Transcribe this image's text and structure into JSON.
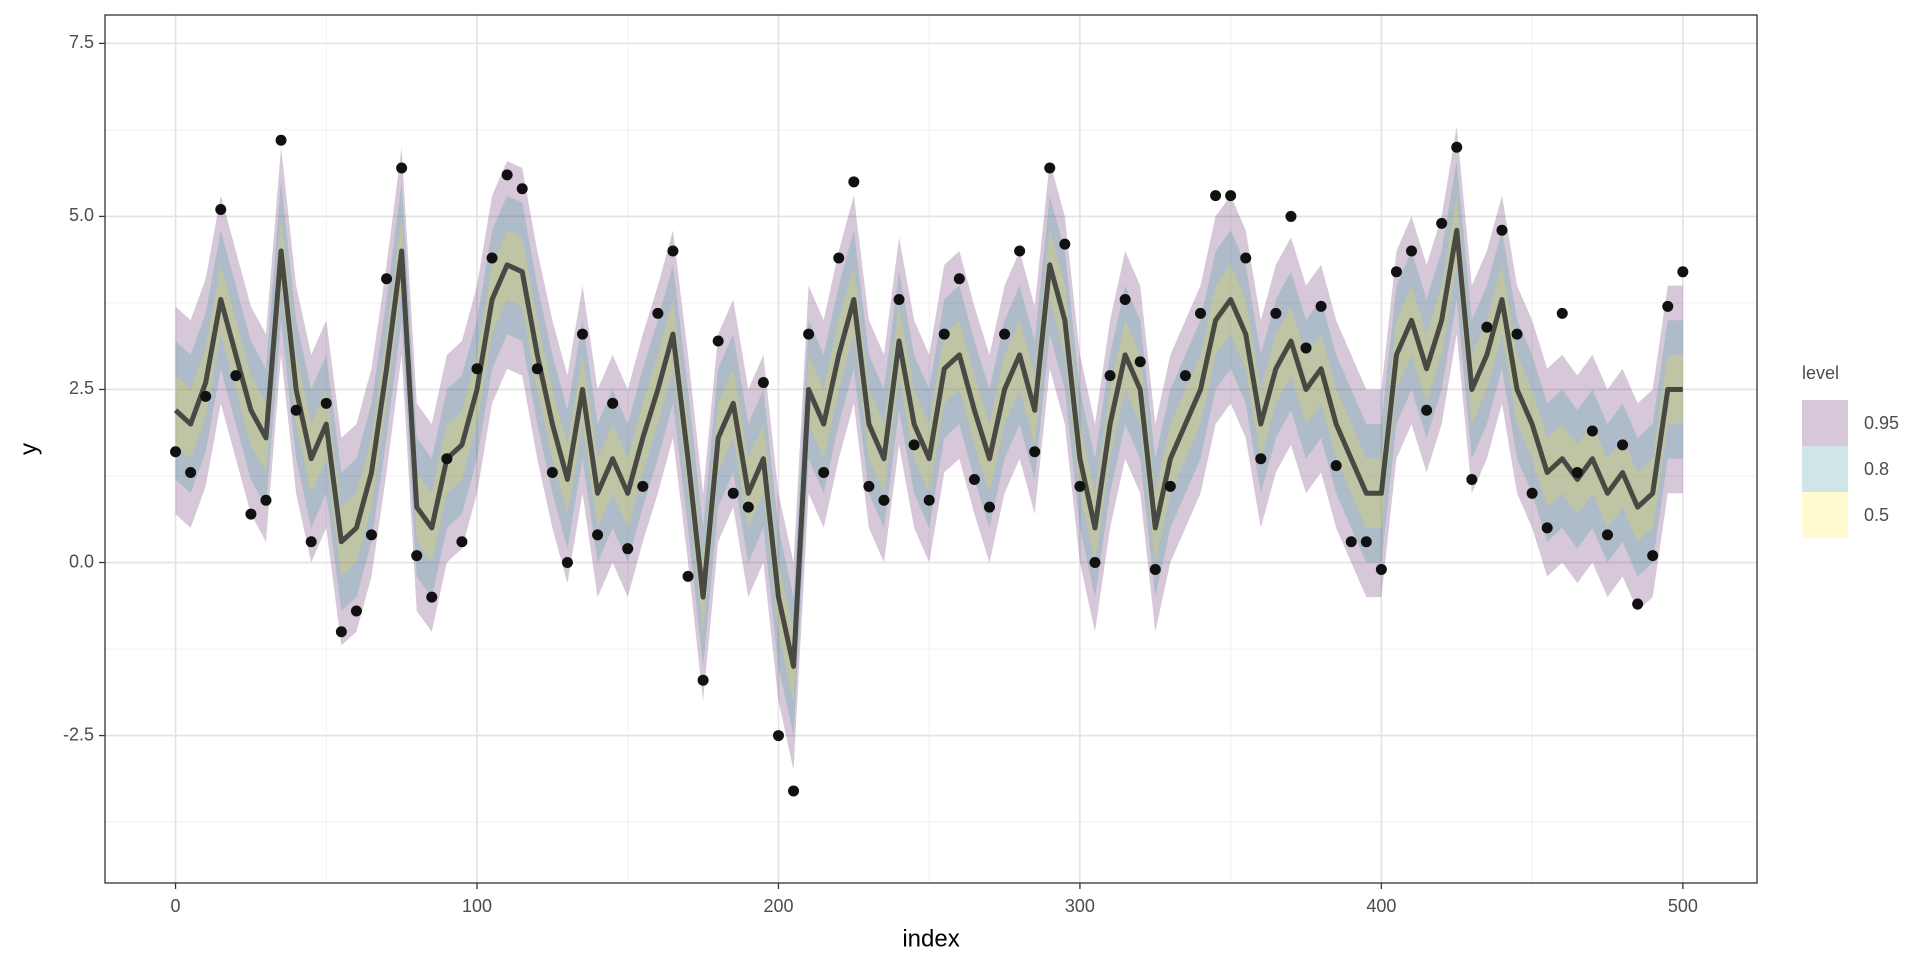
{
  "chart_data": {
    "type": "ribbon",
    "x_label": "index",
    "y_label": "y",
    "legend_title": "level",
    "legend_position": "right",
    "grid": true,
    "xlim": [
      -23.4,
      524.6
    ],
    "ylim": [
      -4.63,
      7.91
    ],
    "xticks": [
      0,
      100,
      200,
      300,
      400,
      500
    ],
    "yticks": [
      -2.5,
      {
        "value": 0,
        "label": "0.0"
      },
      2.5,
      {
        "value": 5,
        "label": "5.0"
      },
      7.5
    ],
    "x_minor_ticks": [
      50,
      150,
      250,
      350,
      450
    ],
    "y_minor_ticks": [
      -3.75,
      -1.25,
      1.25,
      3.75,
      6.25
    ],
    "x": [
      0,
      5,
      10,
      15,
      20,
      25,
      30,
      35,
      40,
      45,
      50,
      55,
      60,
      65,
      70,
      75,
      80,
      85,
      90,
      95,
      100,
      105,
      110,
      115,
      120,
      125,
      130,
      135,
      140,
      145,
      150,
      155,
      160,
      165,
      170,
      175,
      180,
      185,
      190,
      195,
      200,
      205,
      210,
      215,
      220,
      225,
      230,
      235,
      240,
      245,
      250,
      255,
      260,
      265,
      270,
      275,
      280,
      285,
      290,
      295,
      300,
      305,
      310,
      315,
      320,
      325,
      330,
      335,
      340,
      345,
      350,
      355,
      360,
      365,
      370,
      375,
      380,
      385,
      390,
      395,
      400,
      405,
      410,
      415,
      420,
      425,
      430,
      435,
      440,
      445,
      450,
      455,
      460,
      465,
      470,
      475,
      480,
      485,
      490,
      495,
      500
    ],
    "bands": [
      {
        "name": "0.95",
        "color": "#440154",
        "lower": [
          0.7,
          0.5,
          1.1,
          2.3,
          1.5,
          0.7,
          0.3,
          3.0,
          1.0,
          0.0,
          0.5,
          -1.2,
          -1.0,
          -0.2,
          1.3,
          3.0,
          -0.7,
          -1.0,
          0.0,
          0.2,
          1.0,
          2.3,
          2.8,
          2.7,
          1.5,
          0.5,
          -0.3,
          1.0,
          -0.5,
          0.0,
          -0.5,
          0.3,
          1.0,
          1.8,
          0.0,
          -2.0,
          0.3,
          0.8,
          -0.5,
          0.0,
          -2.0,
          -3.0,
          1.0,
          0.5,
          1.5,
          2.3,
          0.5,
          0.0,
          1.7,
          0.5,
          0.0,
          1.3,
          1.5,
          0.7,
          0.0,
          1.0,
          1.5,
          0.7,
          2.8,
          2.0,
          0.0,
          -1.0,
          0.5,
          1.5,
          1.0,
          -1.0,
          0.0,
          0.5,
          1.0,
          2.0,
          2.3,
          1.8,
          0.5,
          1.3,
          1.7,
          1.0,
          1.3,
          0.5,
          0.0,
          -0.5,
          -0.5,
          1.5,
          2.0,
          1.3,
          2.0,
          3.3,
          1.0,
          1.5,
          2.3,
          1.0,
          0.5,
          -0.2,
          0.0,
          -0.3,
          0.0,
          -0.5,
          -0.2,
          -0.7,
          -0.5,
          1.0,
          1.0
        ],
        "upper": [
          3.7,
          3.5,
          4.1,
          5.3,
          4.5,
          3.7,
          3.3,
          6.0,
          4.0,
          3.0,
          3.5,
          1.8,
          2.0,
          2.8,
          4.3,
          6.0,
          2.3,
          2.0,
          3.0,
          3.2,
          4.0,
          5.3,
          5.8,
          5.7,
          4.5,
          3.5,
          2.7,
          4.0,
          2.5,
          3.0,
          2.5,
          3.3,
          4.0,
          4.8,
          3.0,
          1.0,
          3.3,
          3.8,
          2.5,
          3.0,
          1.0,
          0.0,
          4.0,
          3.5,
          4.5,
          5.3,
          3.5,
          3.0,
          4.7,
          3.5,
          3.0,
          4.3,
          4.5,
          3.7,
          3.0,
          4.0,
          4.5,
          3.7,
          5.8,
          5.0,
          3.0,
          2.0,
          3.5,
          4.5,
          4.0,
          2.0,
          3.0,
          3.5,
          4.0,
          5.0,
          5.3,
          4.8,
          3.5,
          4.3,
          4.7,
          4.0,
          4.3,
          3.5,
          3.0,
          2.5,
          2.5,
          4.5,
          5.0,
          4.3,
          5.0,
          6.3,
          4.0,
          4.5,
          5.3,
          4.0,
          3.5,
          2.8,
          3.0,
          2.7,
          3.0,
          2.5,
          2.8,
          2.3,
          2.5,
          4.0,
          4.0
        ]
      },
      {
        "name": "0.8",
        "color": "#21908c",
        "lower": [
          1.2,
          1.0,
          1.6,
          2.8,
          2.0,
          1.2,
          0.8,
          3.5,
          1.5,
          0.5,
          1.0,
          -0.7,
          -0.5,
          0.3,
          1.8,
          3.5,
          -0.2,
          -0.5,
          0.5,
          0.7,
          1.5,
          2.8,
          3.3,
          3.2,
          2.0,
          1.0,
          0.2,
          1.5,
          0.0,
          0.5,
          0.0,
          0.8,
          1.5,
          2.3,
          0.5,
          -1.5,
          0.8,
          1.3,
          0.0,
          0.5,
          -1.5,
          -2.5,
          1.5,
          1.0,
          2.0,
          2.8,
          1.0,
          0.5,
          2.2,
          1.0,
          0.5,
          1.8,
          2.0,
          1.2,
          0.5,
          1.5,
          2.0,
          1.2,
          3.3,
          2.5,
          0.5,
          -0.5,
          1.0,
          2.0,
          1.5,
          -0.5,
          0.5,
          1.0,
          1.5,
          2.5,
          2.8,
          2.3,
          1.0,
          1.8,
          2.2,
          1.5,
          1.8,
          1.0,
          0.5,
          0.0,
          0.0,
          2.0,
          2.5,
          1.8,
          2.5,
          3.8,
          1.5,
          2.0,
          2.8,
          1.5,
          1.0,
          0.3,
          0.5,
          0.2,
          0.5,
          0.0,
          0.3,
          -0.2,
          0.0,
          1.5,
          1.5
        ],
        "upper": [
          3.2,
          3.0,
          3.6,
          4.8,
          4.0,
          3.2,
          2.8,
          5.5,
          3.5,
          2.5,
          3.0,
          1.3,
          1.5,
          2.3,
          3.8,
          5.5,
          1.8,
          1.5,
          2.5,
          2.7,
          3.5,
          4.8,
          5.3,
          5.2,
          4.0,
          3.0,
          2.2,
          3.5,
          2.0,
          2.5,
          2.0,
          2.8,
          3.5,
          4.3,
          2.5,
          0.5,
          2.8,
          3.3,
          2.0,
          2.5,
          0.5,
          -0.5,
          3.5,
          3.0,
          4.0,
          4.8,
          3.0,
          2.5,
          4.2,
          3.0,
          2.5,
          3.8,
          4.0,
          3.2,
          2.5,
          3.5,
          4.0,
          3.2,
          5.3,
          4.5,
          2.5,
          1.5,
          3.0,
          4.0,
          3.5,
          1.5,
          2.5,
          3.0,
          3.5,
          4.5,
          4.8,
          4.3,
          3.0,
          3.8,
          4.2,
          3.5,
          3.8,
          3.0,
          2.5,
          2.0,
          2.0,
          4.0,
          4.5,
          3.8,
          4.5,
          5.8,
          3.5,
          4.0,
          4.8,
          3.5,
          3.0,
          2.3,
          2.5,
          2.2,
          2.5,
          2.0,
          2.3,
          1.8,
          2.0,
          3.5,
          3.5
        ]
      },
      {
        "name": "0.5",
        "color": "#fde725",
        "lower": [
          1.7,
          1.5,
          2.1,
          3.3,
          2.5,
          1.7,
          1.3,
          4.0,
          2.0,
          1.0,
          1.5,
          -0.2,
          0.0,
          0.8,
          2.3,
          4.0,
          0.3,
          0.0,
          1.0,
          1.2,
          2.0,
          3.3,
          3.8,
          3.7,
          2.5,
          1.5,
          0.7,
          2.0,
          0.5,
          1.0,
          0.5,
          1.3,
          2.0,
          2.8,
          1.0,
          -1.0,
          1.3,
          1.8,
          0.5,
          1.0,
          -1.0,
          -2.0,
          2.0,
          1.5,
          2.5,
          3.3,
          1.5,
          1.0,
          2.7,
          1.5,
          1.0,
          2.3,
          2.5,
          1.7,
          1.0,
          2.0,
          2.5,
          1.7,
          3.8,
          3.0,
          1.0,
          0.0,
          1.5,
          2.5,
          2.0,
          0.0,
          1.0,
          1.5,
          2.0,
          3.0,
          3.3,
          2.8,
          1.5,
          2.3,
          2.7,
          2.0,
          2.3,
          1.5,
          1.0,
          0.5,
          0.5,
          2.5,
          3.0,
          2.3,
          3.0,
          4.3,
          2.0,
          2.5,
          3.3,
          2.0,
          1.5,
          0.8,
          1.0,
          0.7,
          1.0,
          0.5,
          0.8,
          0.3,
          0.5,
          2.0,
          2.0
        ],
        "upper": [
          2.7,
          2.5,
          3.1,
          4.3,
          3.5,
          2.7,
          2.3,
          5.0,
          3.0,
          2.0,
          2.5,
          0.8,
          1.0,
          1.8,
          3.3,
          5.0,
          1.3,
          1.0,
          2.0,
          2.2,
          3.0,
          4.3,
          4.8,
          4.7,
          3.5,
          2.5,
          1.7,
          3.0,
          1.5,
          2.0,
          1.5,
          2.3,
          3.0,
          3.8,
          2.0,
          0.0,
          2.3,
          2.8,
          1.5,
          2.0,
          0.0,
          -1.0,
          3.0,
          2.5,
          3.5,
          4.3,
          2.5,
          2.0,
          3.7,
          2.5,
          2.0,
          3.3,
          3.5,
          2.7,
          2.0,
          3.0,
          3.5,
          2.7,
          4.8,
          4.0,
          2.0,
          1.0,
          2.5,
          3.5,
          3.0,
          1.0,
          2.0,
          2.5,
          3.0,
          4.0,
          4.3,
          3.8,
          2.5,
          3.3,
          3.7,
          3.0,
          3.3,
          2.5,
          2.0,
          1.5,
          1.5,
          3.5,
          4.0,
          3.3,
          4.0,
          5.3,
          3.0,
          3.5,
          4.3,
          3.0,
          2.5,
          1.8,
          2.0,
          1.7,
          2.0,
          1.5,
          1.8,
          1.3,
          1.5,
          3.0,
          3.0
        ]
      }
    ],
    "line": {
      "color": "#333333",
      "values": [
        2.2,
        2.0,
        2.6,
        3.8,
        3.0,
        2.2,
        1.8,
        4.5,
        2.5,
        1.5,
        2.0,
        0.3,
        0.5,
        1.3,
        2.8,
        4.5,
        0.8,
        0.5,
        1.5,
        1.7,
        2.5,
        3.8,
        4.3,
        4.2,
        3.0,
        2.0,
        1.2,
        2.5,
        1.0,
        1.5,
        1.0,
        1.8,
        2.5,
        3.3,
        1.5,
        -0.5,
        1.8,
        2.3,
        1.0,
        1.5,
        -0.5,
        -1.5,
        2.5,
        2.0,
        3.0,
        3.8,
        2.0,
        1.5,
        3.2,
        2.0,
        1.5,
        2.8,
        3.0,
        2.2,
        1.5,
        2.5,
        3.0,
        2.2,
        4.3,
        3.5,
        1.5,
        0.5,
        2.0,
        3.0,
        2.5,
        0.5,
        1.5,
        2.0,
        2.5,
        3.5,
        3.8,
        3.3,
        2.0,
        2.8,
        3.2,
        2.5,
        2.8,
        2.0,
        1.5,
        1.0,
        1.0,
        3.0,
        3.5,
        2.8,
        3.5,
        4.8,
        2.5,
        3.0,
        3.8,
        2.5,
        2.0,
        1.3,
        1.5,
        1.2,
        1.5,
        1.0,
        1.3,
        0.8,
        1.0,
        2.5,
        2.5
      ]
    },
    "points": {
      "color": "#111111",
      "values": [
        1.6,
        1.3,
        2.4,
        5.1,
        2.7,
        0.7,
        0.9,
        6.1,
        2.2,
        0.3,
        2.3,
        -1.0,
        -0.7,
        0.4,
        4.1,
        5.7,
        0.1,
        -0.5,
        1.5,
        0.3,
        2.8,
        4.4,
        5.6,
        5.4,
        2.8,
        1.3,
        0.0,
        3.3,
        0.4,
        2.3,
        0.2,
        1.1,
        3.6,
        4.5,
        -0.2,
        -1.7,
        3.2,
        1.0,
        0.8,
        2.6,
        -2.5,
        -3.3,
        3.3,
        1.3,
        4.4,
        5.5,
        1.1,
        0.9,
        3.8,
        1.7,
        0.9,
        3.3,
        4.1,
        1.2,
        0.8,
        3.3,
        4.5,
        1.6,
        5.7,
        4.6,
        1.1,
        0.0,
        2.7,
        3.8,
        2.9,
        -0.1,
        1.1,
        2.7,
        3.6,
        5.3,
        5.3,
        4.4,
        1.5,
        3.6,
        5.0,
        3.1,
        3.7,
        1.4,
        0.3,
        0.3,
        -0.1,
        4.2,
        4.5,
        2.2,
        4.9,
        6.0,
        1.2,
        3.4,
        4.8,
        3.3,
        1.0,
        0.5,
        3.6,
        1.3,
        1.9,
        0.4,
        1.7,
        -0.6,
        0.1,
        3.7,
        4.2
      ]
    }
  }
}
